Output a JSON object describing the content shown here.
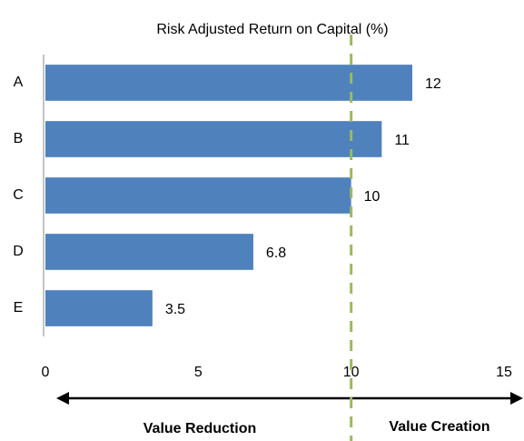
{
  "chart_data": {
    "type": "bar",
    "orientation": "horizontal",
    "title": "Risk Adjusted Return on Capital (%)",
    "categories": [
      "A",
      "B",
      "C",
      "D",
      "E"
    ],
    "values": [
      12,
      11,
      10,
      6.8,
      3.5
    ],
    "color": "#4f81bd",
    "xlim": [
      0,
      15
    ],
    "xticks": [
      0,
      5,
      10,
      15
    ],
    "grid": false,
    "reference_line": {
      "value": 10,
      "color": "#9bbb59"
    },
    "annotations": [
      "Value Reduction",
      "Value Creation"
    ]
  }
}
